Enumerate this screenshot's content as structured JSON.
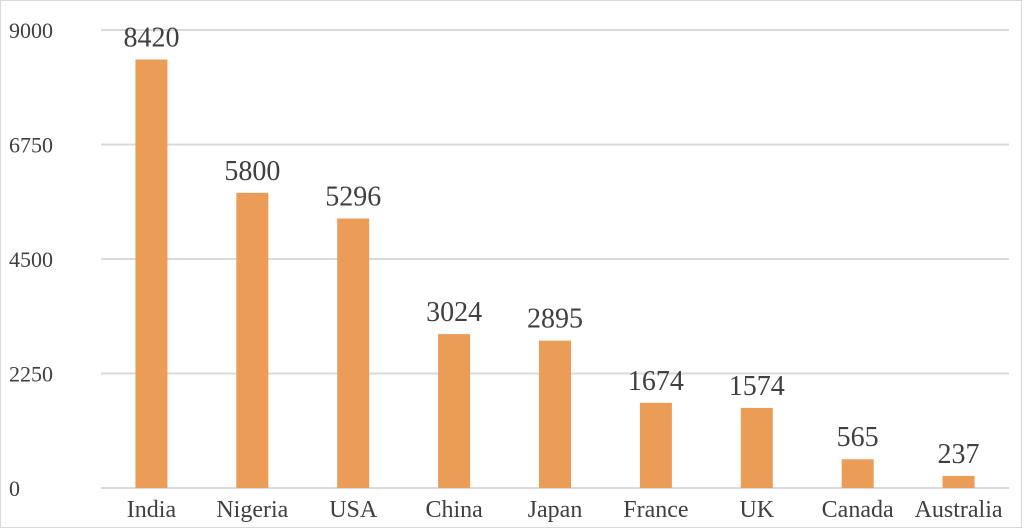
{
  "chart_data": {
    "type": "bar",
    "title": "",
    "xlabel": "",
    "ylabel": "",
    "categories": [
      "India",
      "Nigeria",
      "USA",
      "China",
      "Japan",
      "France",
      "UK",
      "Canada",
      "Australia"
    ],
    "values": [
      8420,
      5800,
      5296,
      3024,
      2895,
      1674,
      1574,
      565,
      237
    ],
    "data_labels": [
      "8420",
      "5800",
      "5296",
      "3024",
      "2895",
      "1674",
      "1574",
      "565",
      "237"
    ],
    "yticks": [
      0,
      2250,
      4500,
      6750,
      9000
    ],
    "ytick_labels": [
      "0",
      "2250",
      "4500",
      "6750",
      "9000"
    ],
    "ylim": [
      0,
      9000
    ],
    "grid": true,
    "legend": "none",
    "colors": {
      "bar": "#EB9C57",
      "grid": "#d9d9d9",
      "text": "#404040",
      "border": "#d9d9d9"
    }
  }
}
